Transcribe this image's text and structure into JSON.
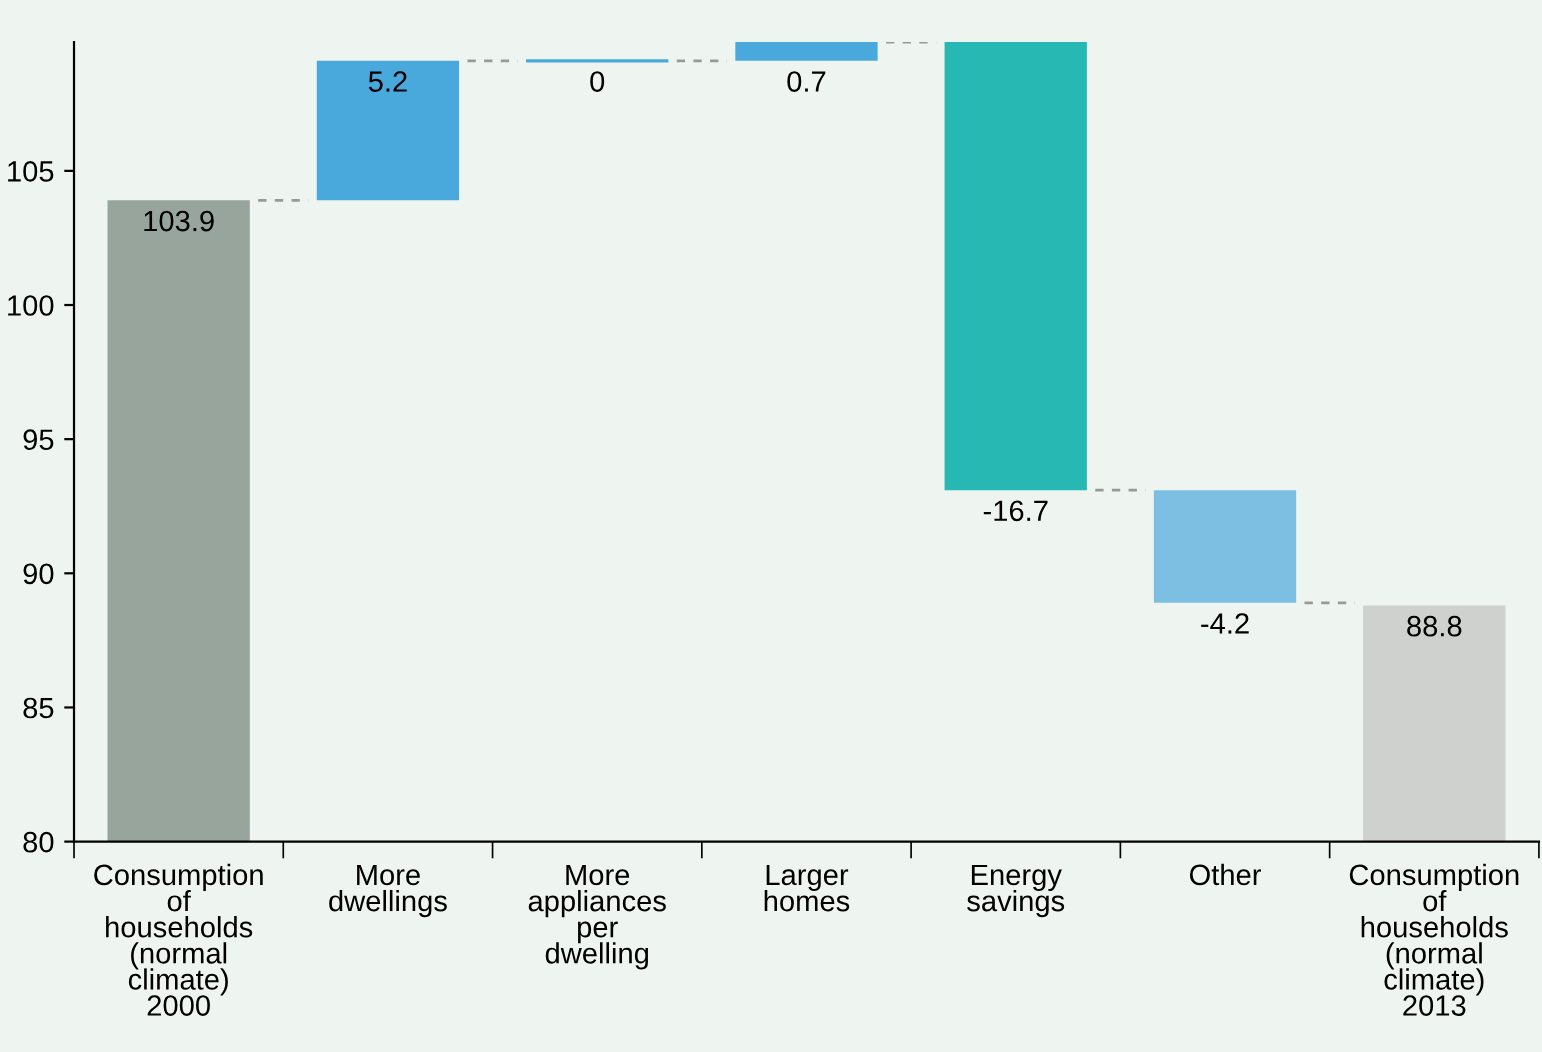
{
  "chart_data": {
    "type": "bar",
    "categories": [
      "Consumption\nof\nhouseholds\n(normal\nclimate)\n2000",
      "More\ndwellings",
      "More\nappliances\nper\ndwelling",
      "Larger\nhomes",
      "Energy\nsavings",
      "Other",
      "Consumption\nof\nhouseholds\n(normal\nclimate)\n2013"
    ],
    "values": [
      103.9,
      5.2,
      0,
      0.7,
      -16.7,
      -4.2,
      88.8
    ],
    "base": [
      0,
      103.9,
      109.1,
      109.1,
      109.8,
      93.1,
      0
    ],
    "colors": [
      "#97a59c",
      "#4aa9dc",
      "#4aa9dc",
      "#4aa9dc",
      "#27b8b3",
      "#7cbfe2",
      "#cfd1cf"
    ],
    "ylim": [
      80,
      109.8
    ],
    "yticks": [
      80,
      85,
      90,
      95,
      100,
      105
    ],
    "data_labels": true,
    "grid": false
  }
}
